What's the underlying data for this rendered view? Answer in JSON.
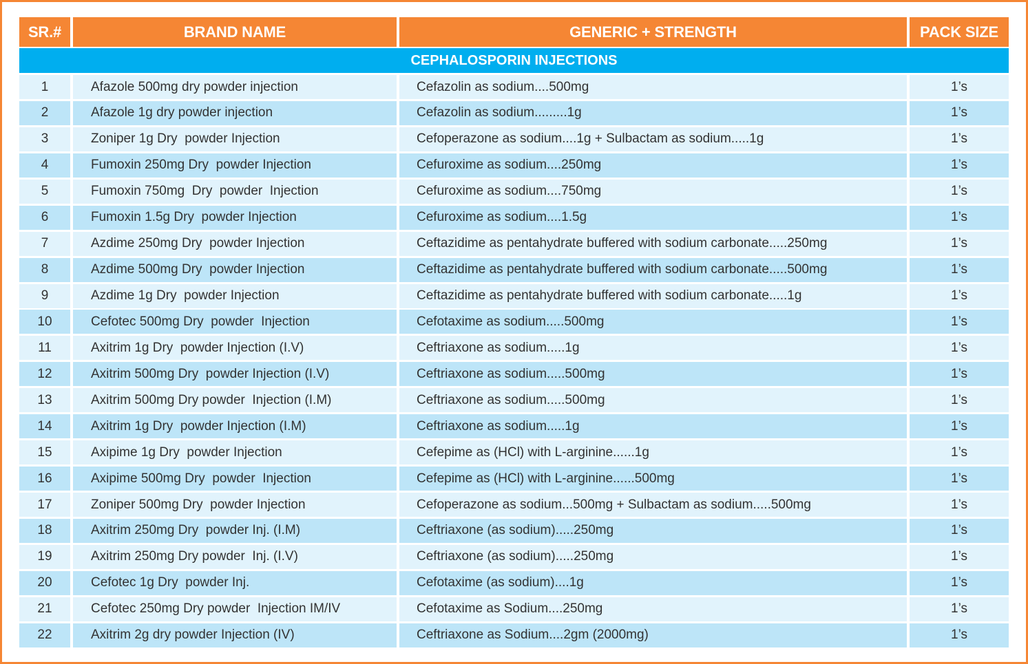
{
  "colors": {
    "header_bg": "#F58634",
    "section_bg": "#00AEEF",
    "row_light": "#E1F3FC",
    "row_dark": "#BDE5F8",
    "frame": "#F58634",
    "text": "#333333"
  },
  "table": {
    "headers": [
      "SR.#",
      "BRAND NAME",
      "GENERIC + STRENGTH",
      "PACK SIZE"
    ],
    "section_title": "CEPHALOSPORIN INJECTIONS",
    "rows": [
      {
        "sr": "1",
        "brand": "Afazole 500mg dry powder injection",
        "generic": "Cefazolin as sodium....500mg",
        "pack": "1’s"
      },
      {
        "sr": "2",
        "brand": "Afazole 1g dry powder injection",
        "generic": "Cefazolin as sodium.........1g",
        "pack": "1’s"
      },
      {
        "sr": "3",
        "brand": "Zoniper 1g Dry  powder Injection",
        "generic": "Cefoperazone as sodium....1g + Sulbactam as sodium.....1g",
        "pack": "1’s"
      },
      {
        "sr": "4",
        "brand": "Fumoxin 250mg Dry  powder Injection",
        "generic": "Cefuroxime as sodium....250mg",
        "pack": "1’s"
      },
      {
        "sr": "5",
        "brand": "Fumoxin 750mg  Dry  powder  Injection",
        "generic": "Cefuroxime as sodium....750mg",
        "pack": "1’s"
      },
      {
        "sr": "6",
        "brand": "Fumoxin 1.5g Dry  powder Injection",
        "generic": "Cefuroxime as sodium....1.5g",
        "pack": "1’s"
      },
      {
        "sr": "7",
        "brand": "Azdime 250mg Dry  powder Injection",
        "generic": "Ceftazidime as pentahydrate buffered with sodium carbonate.....250mg",
        "pack": "1’s"
      },
      {
        "sr": "8",
        "brand": "Azdime 500mg Dry  powder Injection",
        "generic": "Ceftazidime as pentahydrate buffered with sodium carbonate.....500mg",
        "pack": "1’s"
      },
      {
        "sr": "9",
        "brand": "Azdime 1g Dry  powder Injection",
        "generic": "Ceftazidime as pentahydrate buffered with sodium carbonate.....1g",
        "pack": "1’s"
      },
      {
        "sr": "10",
        "brand": "Cefotec 500mg Dry  powder  Injection",
        "generic": "Cefotaxime as sodium.....500mg",
        "pack": "1’s"
      },
      {
        "sr": "11",
        "brand": "Axitrim 1g Dry  powder Injection (I.V)",
        "generic": "Ceftriaxone as sodium.....1g",
        "pack": "1’s"
      },
      {
        "sr": "12",
        "brand": "Axitrim 500mg Dry  powder Injection (I.V)",
        "generic": "Ceftriaxone as sodium.....500mg",
        "pack": "1’s"
      },
      {
        "sr": "13",
        "brand": "Axitrim 500mg Dry powder  Injection (I.M)",
        "generic": "Ceftriaxone as sodium.....500mg",
        "pack": "1’s"
      },
      {
        "sr": "14",
        "brand": "Axitrim 1g Dry  powder Injection (I.M)",
        "generic": "Ceftriaxone as sodium.....1g",
        "pack": "1’s"
      },
      {
        "sr": "15",
        "brand": "Axipime 1g Dry  powder Injection",
        "generic": "Cefepime as (HCl) with L-arginine......1g",
        "pack": "1’s"
      },
      {
        "sr": "16",
        "brand": "Axipime 500mg Dry  powder  Injection",
        "generic": "Cefepime as (HCl) with L-arginine......500mg",
        "pack": "1’s"
      },
      {
        "sr": "17",
        "brand": "Zoniper 500mg Dry  powder Injection",
        "generic": "Cefoperazone as sodium...500mg + Sulbactam as sodium.....500mg",
        "pack": "1’s"
      },
      {
        "sr": "18",
        "brand": "Axitrim 250mg Dry  powder Inj. (I.M)",
        "generic": "Ceftriaxone (as sodium).....250mg",
        "pack": "1’s"
      },
      {
        "sr": "19",
        "brand": "Axitrim 250mg Dry powder  Inj. (I.V)",
        "generic": "Ceftriaxone (as sodium).....250mg",
        "pack": "1’s"
      },
      {
        "sr": "20",
        "brand": "Cefotec 1g Dry  powder Inj.",
        "generic": "Cefotaxime (as sodium)....1g",
        "pack": "1’s"
      },
      {
        "sr": "21",
        "brand": "Cefotec 250mg Dry powder  Injection IM/IV",
        "generic": "Cefotaxime as Sodium....250mg",
        "pack": "1’s"
      },
      {
        "sr": "22",
        "brand": "Axitrim 2g dry powder Injection (IV)",
        "generic": "Ceftriaxone as Sodium....2gm (2000mg)",
        "pack": "1’s"
      }
    ]
  }
}
